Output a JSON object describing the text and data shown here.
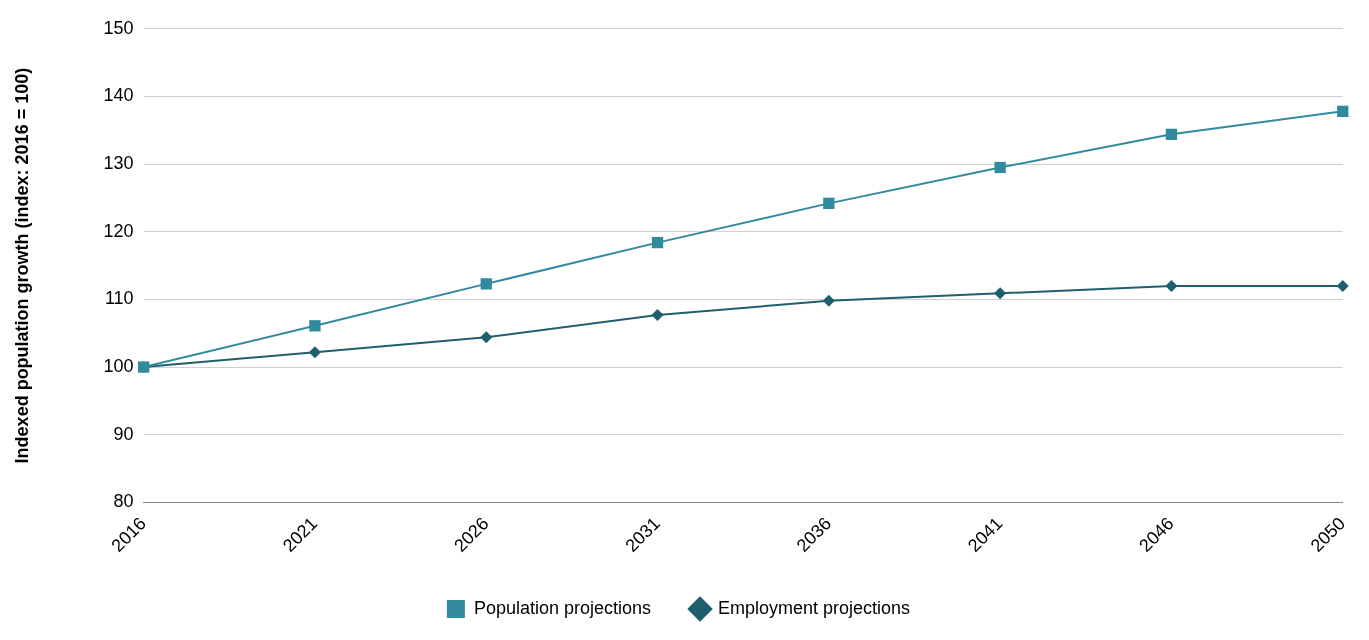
{
  "chart_data": {
    "type": "line",
    "ylabel": "Indexed population growth (index: 2016 = 100)",
    "categories": [
      "2016",
      "2021",
      "2026",
      "2031",
      "2036",
      "2041",
      "2046",
      "2050"
    ],
    "series": [
      {
        "name": "Employment projections",
        "color": "#1f5f6d",
        "marker": "diamond",
        "values": [
          100,
          102.2,
          104.4,
          107.7,
          109.8,
          110.9,
          112,
          112
        ]
      },
      {
        "name": "Population projections",
        "color": "#328a9f",
        "marker": "square",
        "values": [
          100,
          106.1,
          112.3,
          118.4,
          124.2,
          129.5,
          134.4,
          137.8
        ]
      }
    ],
    "ylim": [
      80,
      150
    ],
    "yticks": [
      80,
      90,
      100,
      110,
      120,
      130,
      140,
      150
    ],
    "grid": "y",
    "legend": "bottom",
    "line_style": "solid"
  }
}
